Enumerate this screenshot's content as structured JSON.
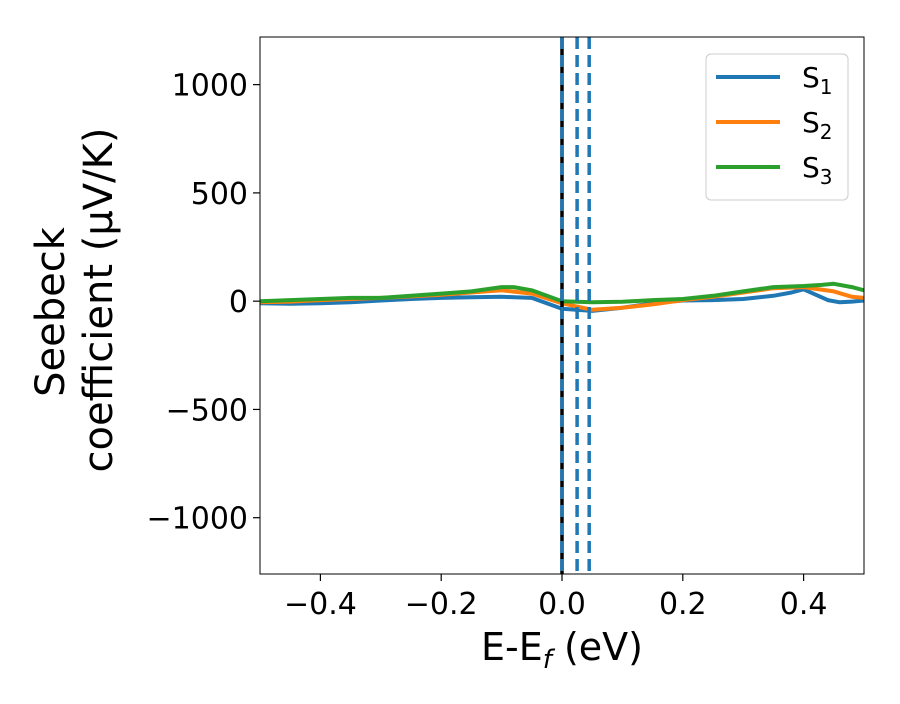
{
  "chart_data": {
    "type": "line",
    "title": "",
    "xlabel_main": "E-E",
    "xlabel_sub": "f",
    "xlabel_tail": " (eV)",
    "ylabel_line1": "Seebeck",
    "ylabel_line2": "coefficient  (μV/K)",
    "xlim": [
      -0.5,
      0.5
    ],
    "ylim": [
      -1260,
      1220
    ],
    "xticks": [
      -0.4,
      -0.2,
      0.0,
      0.2,
      0.4
    ],
    "xtick_labels": [
      "−0.4",
      "−0.2",
      "0.0",
      "0.2",
      "0.4"
    ],
    "yticks": [
      -1000,
      -500,
      0,
      500,
      1000
    ],
    "ytick_labels": [
      "−1000",
      "−500",
      "0",
      "500",
      "1000"
    ],
    "grid": false,
    "legend_position": "top-right",
    "vlines": [
      {
        "x": 0.0,
        "color": "#000000",
        "style": "solid"
      },
      {
        "x": 0.0,
        "color": "#1f77b4",
        "style": "dashed"
      },
      {
        "x": 0.025,
        "color": "#1f77b4",
        "style": "dashed"
      },
      {
        "x": 0.045,
        "color": "#1f77b4",
        "style": "dashed"
      }
    ],
    "series": [
      {
        "name": "S",
        "sub": "1",
        "color": "#1f77b4",
        "x": [
          -0.5,
          -0.45,
          -0.4,
          -0.35,
          -0.3,
          -0.25,
          -0.2,
          -0.15,
          -0.1,
          -0.05,
          0.0,
          0.05,
          0.1,
          0.15,
          0.2,
          0.25,
          0.3,
          0.35,
          0.38,
          0.4,
          0.42,
          0.44,
          0.46,
          0.48,
          0.5
        ],
        "y": [
          -10,
          -12,
          -10,
          -5,
          3,
          10,
          15,
          18,
          20,
          15,
          -35,
          -45,
          -30,
          -10,
          3,
          5,
          10,
          25,
          40,
          55,
          30,
          5,
          -5,
          -2,
          3
        ]
      },
      {
        "name": "S",
        "sub": "2",
        "color": "#ff7f0e",
        "x": [
          -0.5,
          -0.45,
          -0.4,
          -0.35,
          -0.3,
          -0.25,
          -0.2,
          -0.15,
          -0.1,
          -0.05,
          0.0,
          0.05,
          0.1,
          0.15,
          0.2,
          0.25,
          0.3,
          0.35,
          0.4,
          0.45,
          0.48,
          0.5
        ],
        "y": [
          -5,
          -2,
          5,
          10,
          15,
          22,
          30,
          40,
          50,
          35,
          -10,
          -40,
          -30,
          -15,
          5,
          20,
          40,
          60,
          65,
          45,
          20,
          15
        ]
      },
      {
        "name": "S",
        "sub": "3",
        "color": "#2ca02c",
        "x": [
          -0.5,
          -0.45,
          -0.4,
          -0.35,
          -0.3,
          -0.25,
          -0.2,
          -0.15,
          -0.1,
          -0.08,
          -0.05,
          0.0,
          0.05,
          0.1,
          0.15,
          0.2,
          0.25,
          0.3,
          0.35,
          0.4,
          0.43,
          0.45,
          0.48,
          0.5
        ],
        "y": [
          0,
          5,
          10,
          15,
          15,
          25,
          35,
          45,
          65,
          65,
          50,
          0,
          -5,
          -3,
          5,
          10,
          25,
          45,
          65,
          70,
          75,
          80,
          65,
          50
        ]
      }
    ]
  }
}
